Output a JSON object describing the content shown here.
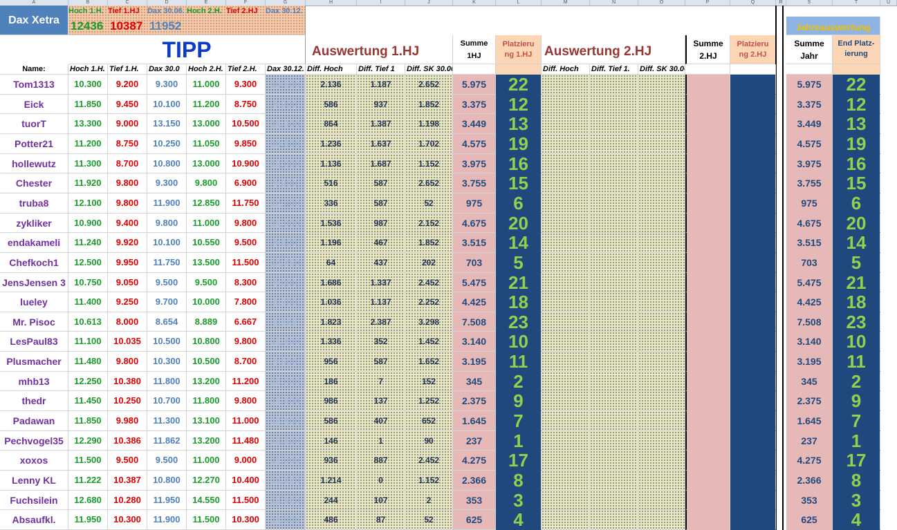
{
  "column_letters": [
    "A",
    "B",
    "C",
    "D",
    "E",
    "F",
    "G",
    "H",
    "I",
    "J",
    "K",
    "L",
    "M",
    "N",
    "O",
    "P",
    "Q",
    "R",
    "S",
    "T",
    "U"
  ],
  "header": {
    "dax_label": "Dax Xetra",
    "top_labels": [
      "Hoch 1.H.",
      "Tief 1.HJ",
      "Dax 30.06.",
      "Hoch 2.H.",
      "Tief 2.HJ",
      "Dax 30.12."
    ],
    "top_values": [
      "12436",
      "10387",
      "11952"
    ],
    "tipp": "TIPP",
    "auswertung1": "Auswertung 1.HJ",
    "auswertung2": "Auswertung 2.HJ",
    "summe1_a": "Summe",
    "summe1_b": "1HJ",
    "platz1_a": "Platzieru",
    "platz1_b": "ng 1.HJ",
    "summe2_a": "Summe",
    "summe2_b": "2.HJ",
    "platz2_a": "Platzieru",
    "platz2_b": "ng 2.HJ",
    "jahres": "Jahreauswertung",
    "sumjahr_a": "Summe",
    "sumjahr_b": "Jahr",
    "endplatz_a": "End Platz-",
    "endplatz_b": "ierung",
    "name_label": "Name:",
    "sub_labels": [
      "Hoch 1.H.",
      "Tief 1.H.",
      "Dax 30.0",
      "Hoch 2.H.",
      "Tief 2.H.",
      "Dax 30.12."
    ],
    "diff_labels": [
      "Diff. Hoch",
      "Diff. Tief 1",
      "Diff. SK 30.06."
    ],
    "diff2_labels": [
      "Diff. Hoch",
      "Diff. Tief 1.",
      "Diff. SK 30.06."
    ]
  },
  "colors": {
    "green": "#1a9c2a",
    "red": "#e00000",
    "blue": "#4f81bd",
    "purple": "#7030a0",
    "navy": "#1f497d",
    "pink": "#e6b8b7",
    "orange": "#fcd5b4",
    "lime": "#92d050",
    "title_blue": "#0b3cc7",
    "brown": "#953735"
  },
  "rows": [
    {
      "name": "Tom1313",
      "h1": "10.300",
      "t1": "9.200",
      "d1": "9.300",
      "h2": "11.000",
      "t2": "9.300",
      "d2": "10.500",
      "dh": "2.136",
      "dt": "1.187",
      "ds": "2.652",
      "sum": "5.975",
      "platz": "22",
      "sj": "5.975",
      "ep": "22"
    },
    {
      "name": "Eick",
      "h1": "11.850",
      "t1": "9.450",
      "d1": "10.100",
      "h2": "11.200",
      "t2": "8.750",
      "d2": "9.600",
      "dh": "586",
      "dt": "937",
      "ds": "1.852",
      "sum": "3.375",
      "platz": "12",
      "sj": "3.375",
      "ep": "12"
    },
    {
      "name": "tuorT",
      "h1": "13.300",
      "t1": "9.000",
      "d1": "13.150",
      "h2": "13.000",
      "t2": "10.500",
      "d2": "11.300",
      "dh": "864",
      "dt": "1.387",
      "ds": "1.198",
      "sum": "3.449",
      "platz": "13",
      "sj": "3.449",
      "ep": "13"
    },
    {
      "name": "Potter21",
      "h1": "11.200",
      "t1": "8.750",
      "d1": "10.250",
      "h2": "11.050",
      "t2": "9.850",
      "d2": "10.800",
      "dh": "1.236",
      "dt": "1.637",
      "ds": "1.702",
      "sum": "4.575",
      "platz": "19",
      "sj": "4.575",
      "ep": "19"
    },
    {
      "name": "hollewutz",
      "h1": "11.300",
      "t1": "8.700",
      "d1": "10.800",
      "h2": "13.000",
      "t2": "10.900",
      "d2": "13.000",
      "dh": "1.136",
      "dt": "1.687",
      "ds": "1.152",
      "sum": "3.975",
      "platz": "16",
      "sj": "3.975",
      "ep": "16"
    },
    {
      "name": "Chester",
      "h1": "11.920",
      "t1": "9.800",
      "d1": "9.300",
      "h2": "9.800",
      "t2": "6.900",
      "d2": "9.800",
      "dh": "516",
      "dt": "587",
      "ds": "2.652",
      "sum": "3.755",
      "platz": "15",
      "sj": "3.755",
      "ep": "15"
    },
    {
      "name": "truba8",
      "h1": "12.100",
      "t1": "9.800",
      "d1": "11.900",
      "h2": "12.850",
      "t2": "11.750",
      "d2": "12.400",
      "dh": "336",
      "dt": "587",
      "ds": "52",
      "sum": "975",
      "platz": "6",
      "sj": "975",
      "ep": "6"
    },
    {
      "name": "zykliker",
      "h1": "10.900",
      "t1": "9.400",
      "d1": "9.800",
      "h2": "11.000",
      "t2": "9.800",
      "d2": "11.000",
      "dh": "1.536",
      "dt": "987",
      "ds": "2.152",
      "sum": "4.675",
      "platz": "20",
      "sj": "4.675",
      "ep": "20"
    },
    {
      "name": "endakameli",
      "h1": "11.240",
      "t1": "9.920",
      "d1": "10.100",
      "h2": "10.550",
      "t2": "9.500",
      "d2": "9.800",
      "dh": "1.196",
      "dt": "467",
      "ds": "1.852",
      "sum": "3.515",
      "platz": "14",
      "sj": "3.515",
      "ep": "14"
    },
    {
      "name": "Chefkoch1",
      "h1": "12.500",
      "t1": "9.950",
      "d1": "11.750",
      "h2": "13.500",
      "t2": "11.500",
      "d2": "12.750",
      "dh": "64",
      "dt": "437",
      "ds": "202",
      "sum": "703",
      "platz": "5",
      "sj": "703",
      "ep": "5"
    },
    {
      "name": "JensJensen 3",
      "h1": "10.750",
      "t1": "9.050",
      "d1": "9.500",
      "h2": "9.500",
      "t2": "8.300",
      "d2": "9.000",
      "dh": "1.686",
      "dt": "1.337",
      "ds": "2.452",
      "sum": "5.475",
      "platz": "21",
      "sj": "5.475",
      "ep": "21"
    },
    {
      "name": "lueley",
      "h1": "11.400",
      "t1": "9.250",
      "d1": "9.700",
      "h2": "10.000",
      "t2": "7.800",
      "d2": "8.700",
      "dh": "1.036",
      "dt": "1.137",
      "ds": "2.252",
      "sum": "4.425",
      "platz": "18",
      "sj": "4.425",
      "ep": "18"
    },
    {
      "name": "Mr. Pisoc",
      "h1": "10.613",
      "t1": "8.000",
      "d1": "8.654",
      "h2": "8.889",
      "t2": "6.667",
      "d2": "8.127",
      "dh": "1.823",
      "dt": "2.387",
      "ds": "3.298",
      "sum": "7.508",
      "platz": "23",
      "sj": "7.508",
      "ep": "23"
    },
    {
      "name": "LesPaul83",
      "h1": "11.100",
      "t1": "10.035",
      "d1": "10.500",
      "h2": "10.800",
      "t2": "9.800",
      "d2": "11.200",
      "dh": "1.336",
      "dt": "352",
      "ds": "1.452",
      "sum": "3.140",
      "platz": "10",
      "sj": "3.140",
      "ep": "10"
    },
    {
      "name": "Plusmacher",
      "h1": "11.480",
      "t1": "9.800",
      "d1": "10.300",
      "h2": "10.500",
      "t2": "8.700",
      "d2": "9.500",
      "dh": "956",
      "dt": "587",
      "ds": "1.652",
      "sum": "3.195",
      "platz": "11",
      "sj": "3.195",
      "ep": "11"
    },
    {
      "name": "mhb13",
      "h1": "12.250",
      "t1": "10.380",
      "d1": "11.800",
      "h2": "13.200",
      "t2": "11.200",
      "d2": "13.000",
      "dh": "186",
      "dt": "7",
      "ds": "152",
      "sum": "345",
      "platz": "2",
      "sj": "345",
      "ep": "2"
    },
    {
      "name": "thedr",
      "h1": "11.450",
      "t1": "10.250",
      "d1": "10.700",
      "h2": "11.800",
      "t2": "9.800",
      "d2": "11.800",
      "dh": "986",
      "dt": "137",
      "ds": "1.252",
      "sum": "2.375",
      "platz": "9",
      "sj": "2.375",
      "ep": "9"
    },
    {
      "name": "Padawan",
      "h1": "11.850",
      "t1": "9.980",
      "d1": "11.300",
      "h2": "13.100",
      "t2": "11.000",
      "d2": "13.100",
      "dh": "586",
      "dt": "407",
      "ds": "652",
      "sum": "1.645",
      "platz": "7",
      "sj": "1.645",
      "ep": "7"
    },
    {
      "name": "Pechvogel35",
      "h1": "12.290",
      "t1": "10.386",
      "d1": "11.862",
      "h2": "13.200",
      "t2": "11.480",
      "d2": "13.100",
      "dh": "146",
      "dt": "1",
      "ds": "90",
      "sum": "237",
      "platz": "1",
      "sj": "237",
      "ep": "1"
    },
    {
      "name": "xoxos",
      "h1": "11.500",
      "t1": "9.500",
      "d1": "9.500",
      "h2": "11.000",
      "t2": "9.000",
      "d2": "11.000",
      "dh": "936",
      "dt": "887",
      "ds": "2.452",
      "sum": "4.275",
      "platz": "17",
      "sj": "4.275",
      "ep": "17"
    },
    {
      "name": "Lenny KL",
      "h1": "11.222",
      "t1": "10.387",
      "d1": "10.800",
      "h2": "12.270",
      "t2": "10.400",
      "d2": "12.270",
      "dh": "1.214",
      "dt": "0",
      "ds": "1.152",
      "sum": "2.366",
      "platz": "8",
      "sj": "2.366",
      "ep": "8"
    },
    {
      "name": "Fuchsilein",
      "h1": "12.680",
      "t1": "10.280",
      "d1": "11.950",
      "h2": "14.550",
      "t2": "11.500",
      "d2": "13.620",
      "dh": "244",
      "dt": "107",
      "ds": "2",
      "sum": "353",
      "platz": "3",
      "sj": "353",
      "ep": "3"
    },
    {
      "name": "Absaufkl.",
      "h1": "11.950",
      "t1": "10.300",
      "d1": "11.900",
      "h2": "11.500",
      "t2": "10.300",
      "d2": "11.000",
      "dh": "486",
      "dt": "87",
      "ds": "52",
      "sum": "625",
      "platz": "4",
      "sj": "625",
      "ep": "4"
    }
  ]
}
